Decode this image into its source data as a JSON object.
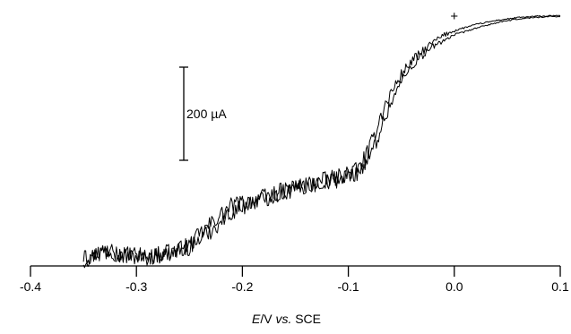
{
  "chart_data": {
    "type": "line",
    "title": "",
    "xlabel_italic": "E",
    "xlabel_rest": "/V ",
    "xlabel_vs": "vs.",
    "xlabel_ref": " SCE",
    "ylabel": "",
    "xlim": [
      -0.4,
      0.1
    ],
    "x_ticks": [
      "-0.4",
      "-0.3",
      "-0.2",
      "-0.1",
      "0.0",
      "0.1"
    ],
    "x_tick_values": [
      -0.4,
      -0.3,
      -0.2,
      -0.1,
      0.0,
      0.1
    ],
    "scale_bar_label": "200 µA",
    "scale_bar_value_uA": 200,
    "marker_symbol": "+",
    "marker_x": 0.0,
    "grid": false,
    "series": [
      {
        "x": [
          -0.35,
          -0.33,
          -0.31,
          -0.29,
          -0.27,
          -0.25,
          -0.23,
          -0.21,
          -0.19,
          -0.17,
          -0.15,
          -0.13,
          -0.11,
          -0.09,
          -0.08,
          -0.07,
          -0.06,
          -0.05,
          -0.04,
          -0.03,
          -0.02,
          -0.01,
          0.0,
          0.02,
          0.04,
          0.06,
          0.08,
          0.1
        ],
        "y": [
          20,
          45,
          30,
          28,
          35,
          55,
          100,
          140,
          150,
          165,
          180,
          190,
          200,
          220,
          260,
          330,
          380,
          420,
          450,
          470,
          490,
          505,
          515,
          528,
          537,
          543,
          546,
          547
        ],
        "noise_uA": 18
      },
      {
        "x": [
          -0.35,
          -0.33,
          -0.31,
          -0.29,
          -0.27,
          -0.25,
          -0.23,
          -0.21,
          -0.19,
          -0.17,
          -0.15,
          -0.13,
          -0.11,
          -0.09,
          -0.08,
          -0.07,
          -0.06,
          -0.05,
          -0.04,
          -0.03,
          -0.02,
          -0.01,
          0.0,
          0.02,
          0.04,
          0.06,
          0.08,
          0.1
        ],
        "y": [
          25,
          40,
          34,
          30,
          38,
          50,
          85,
          125,
          148,
          160,
          175,
          185,
          195,
          212,
          240,
          300,
          360,
          405,
          440,
          462,
          480,
          495,
          505,
          520,
          532,
          540,
          544,
          546
        ],
        "noise_uA": 18
      }
    ]
  }
}
